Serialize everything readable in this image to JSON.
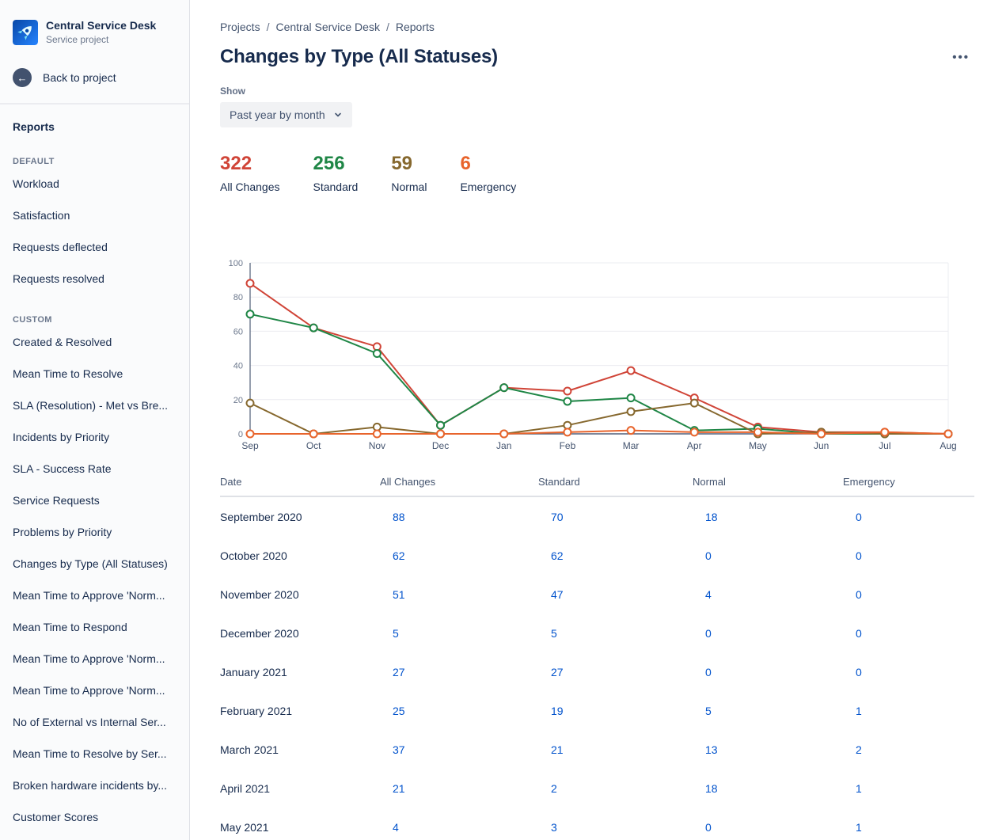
{
  "sidebar": {
    "project_name": "Central Service Desk",
    "project_type": "Service project",
    "back_label": "Back to project",
    "reports_title": "Reports",
    "sections": [
      {
        "label": "DEFAULT",
        "items": [
          "Workload",
          "Satisfaction",
          "Requests deflected",
          "Requests resolved"
        ]
      },
      {
        "label": "CUSTOM",
        "items": [
          "Created & Resolved",
          "Mean Time to Resolve",
          "SLA (Resolution) - Met vs Bre...",
          "Incidents by Priority",
          "SLA - Success Rate",
          "Service Requests",
          "Problems by Priority",
          "Changes by Type (All Statuses)",
          "Mean Time to Approve 'Norm...",
          "Mean Time to Respond",
          "Mean Time to Approve 'Norm...",
          "Mean Time to Approve 'Norm...",
          "No of External vs Internal Ser...",
          "Mean Time to Resolve by Ser...",
          "Broken hardware incidents by...",
          "Customer Scores"
        ]
      }
    ]
  },
  "breadcrumb": {
    "items": [
      "Projects",
      "Central Service Desk",
      "Reports"
    ],
    "separator": "/"
  },
  "header": {
    "title": "Changes by Type (All Statuses)",
    "more_label": "•••"
  },
  "filter": {
    "label": "Show",
    "value": "Past year by month"
  },
  "stats": [
    {
      "value": "322",
      "label": "All Changes",
      "color": "#d04437"
    },
    {
      "value": "256",
      "label": "Standard",
      "color": "#1f8646"
    },
    {
      "value": "59",
      "label": "Normal",
      "color": "#86682e"
    },
    {
      "value": "6",
      "label": "Emergency",
      "color": "#e8642c"
    }
  ],
  "chart_data": {
    "type": "line",
    "title": "Changes by Type (All Statuses)",
    "x": [
      "Sep",
      "Oct",
      "Nov",
      "Dec",
      "Jan",
      "Feb",
      "Mar",
      "Apr",
      "May",
      "Jun",
      "Jul",
      "Aug"
    ],
    "series": [
      {
        "name": "All Changes",
        "color": "#d04437",
        "values": [
          88,
          62,
          51,
          5,
          27,
          25,
          37,
          21,
          4,
          1,
          1,
          0
        ]
      },
      {
        "name": "Standard",
        "color": "#1f8646",
        "values": [
          70,
          62,
          47,
          5,
          27,
          19,
          21,
          2,
          3,
          0,
          0,
          0
        ]
      },
      {
        "name": "Normal",
        "color": "#86682e",
        "values": [
          18,
          0,
          4,
          0,
          0,
          5,
          13,
          18,
          0,
          1,
          0,
          0
        ]
      },
      {
        "name": "Emergency",
        "color": "#e8642c",
        "values": [
          0,
          0,
          0,
          0,
          0,
          1,
          2,
          1,
          1,
          0,
          1,
          0
        ]
      }
    ],
    "ylim": [
      0,
      100
    ],
    "yticks": [
      0,
      20,
      40,
      60,
      80,
      100
    ],
    "grid": true,
    "legend": "none"
  },
  "table": {
    "columns": [
      "Date",
      "All Changes",
      "Standard",
      "Normal",
      "Emergency"
    ],
    "rows": [
      {
        "date": "September 2020",
        "values": [
          88,
          70,
          18,
          0
        ]
      },
      {
        "date": "October 2020",
        "values": [
          62,
          62,
          0,
          0
        ]
      },
      {
        "date": "November 2020",
        "values": [
          51,
          47,
          4,
          0
        ]
      },
      {
        "date": "December 2020",
        "values": [
          5,
          5,
          0,
          0
        ]
      },
      {
        "date": "January 2021",
        "values": [
          27,
          27,
          0,
          0
        ]
      },
      {
        "date": "February 2021",
        "values": [
          25,
          19,
          5,
          1
        ]
      },
      {
        "date": "March 2021",
        "values": [
          37,
          21,
          13,
          2
        ]
      },
      {
        "date": "April 2021",
        "values": [
          21,
          2,
          18,
          1
        ]
      },
      {
        "date": "May 2021",
        "values": [
          4,
          3,
          0,
          1
        ]
      }
    ]
  }
}
